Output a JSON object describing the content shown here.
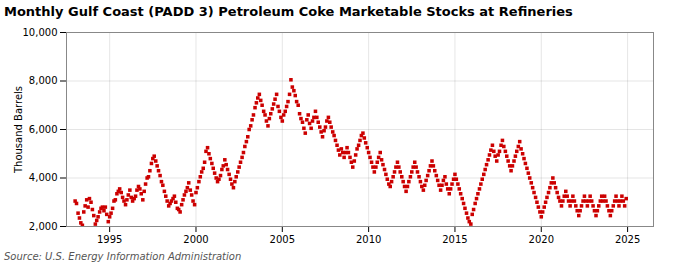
{
  "chart_data": {
    "type": "scatter",
    "title": "Monthly Gulf Coast (PADD 3) Petroleum Coke Marketable Stocks at Refineries",
    "ylabel": "Thousand Barrels",
    "caption": "Source: U.S. Energy Information Administration",
    "color": "#cc0000",
    "marker": "square",
    "grid": true,
    "xlim": [
      1992.5,
      2026.5
    ],
    "xticks": [
      1995,
      2000,
      2005,
      2010,
      2015,
      2020,
      2025
    ],
    "ylim": [
      2000,
      10000
    ],
    "yticks": [
      {
        "value": 2000,
        "label": "2,000"
      },
      {
        "value": 4000,
        "label": "4,000"
      },
      {
        "value": 6000,
        "label": "6,000"
      },
      {
        "value": 8000,
        "label": "8,000"
      },
      {
        "value": 10000,
        "label": "10,000"
      }
    ],
    "x": [
      1993.0,
      1993.08,
      1993.17,
      1993.25,
      1993.33,
      1993.42,
      1993.5,
      1993.58,
      1993.67,
      1993.75,
      1993.83,
      1993.92,
      1994.0,
      1994.08,
      1994.17,
      1994.25,
      1994.33,
      1994.42,
      1994.5,
      1994.58,
      1994.67,
      1994.75,
      1994.83,
      1994.92,
      1995.0,
      1995.08,
      1995.17,
      1995.25,
      1995.33,
      1995.42,
      1995.5,
      1995.58,
      1995.67,
      1995.75,
      1995.83,
      1995.92,
      1996.0,
      1996.08,
      1996.17,
      1996.25,
      1996.33,
      1996.42,
      1996.5,
      1996.58,
      1996.67,
      1996.75,
      1996.83,
      1996.92,
      1997.0,
      1997.08,
      1997.17,
      1997.25,
      1997.33,
      1997.42,
      1997.5,
      1997.58,
      1997.67,
      1997.75,
      1997.83,
      1997.92,
      1998.0,
      1998.08,
      1998.17,
      1998.25,
      1998.33,
      1998.42,
      1998.5,
      1998.58,
      1998.67,
      1998.75,
      1998.83,
      1998.92,
      1999.0,
      1999.08,
      1999.17,
      1999.25,
      1999.33,
      1999.42,
      1999.5,
      1999.58,
      1999.67,
      1999.75,
      1999.83,
      1999.92,
      2000.0,
      2000.08,
      2000.17,
      2000.25,
      2000.33,
      2000.42,
      2000.5,
      2000.58,
      2000.67,
      2000.75,
      2000.83,
      2000.92,
      2001.0,
      2001.08,
      2001.17,
      2001.25,
      2001.33,
      2001.42,
      2001.5,
      2001.58,
      2001.67,
      2001.75,
      2001.83,
      2001.92,
      2002.0,
      2002.08,
      2002.17,
      2002.25,
      2002.33,
      2002.42,
      2002.5,
      2002.58,
      2002.67,
      2002.75,
      2002.83,
      2002.92,
      2003.0,
      2003.08,
      2003.17,
      2003.25,
      2003.33,
      2003.42,
      2003.5,
      2003.58,
      2003.67,
      2003.75,
      2003.83,
      2003.92,
      2004.0,
      2004.08,
      2004.17,
      2004.25,
      2004.33,
      2004.42,
      2004.5,
      2004.58,
      2004.67,
      2004.75,
      2004.83,
      2004.92,
      2005.0,
      2005.08,
      2005.17,
      2005.25,
      2005.33,
      2005.42,
      2005.5,
      2005.58,
      2005.67,
      2005.75,
      2005.83,
      2005.92,
      2006.0,
      2006.08,
      2006.17,
      2006.25,
      2006.33,
      2006.42,
      2006.5,
      2006.58,
      2006.67,
      2006.75,
      2006.83,
      2006.92,
      2007.0,
      2007.08,
      2007.17,
      2007.25,
      2007.33,
      2007.42,
      2007.5,
      2007.58,
      2007.67,
      2007.75,
      2007.83,
      2007.92,
      2008.0,
      2008.08,
      2008.17,
      2008.25,
      2008.33,
      2008.42,
      2008.5,
      2008.58,
      2008.67,
      2008.75,
      2008.83,
      2008.92,
      2009.0,
      2009.08,
      2009.17,
      2009.25,
      2009.33,
      2009.42,
      2009.5,
      2009.58,
      2009.67,
      2009.75,
      2009.83,
      2009.92,
      2010.0,
      2010.08,
      2010.17,
      2010.25,
      2010.33,
      2010.42,
      2010.5,
      2010.58,
      2010.67,
      2010.75,
      2010.83,
      2010.92,
      2011.0,
      2011.08,
      2011.17,
      2011.25,
      2011.33,
      2011.42,
      2011.5,
      2011.58,
      2011.67,
      2011.75,
      2011.83,
      2011.92,
      2012.0,
      2012.08,
      2012.17,
      2012.25,
      2012.33,
      2012.42,
      2012.5,
      2012.58,
      2012.67,
      2012.75,
      2012.83,
      2012.92,
      2013.0,
      2013.08,
      2013.17,
      2013.25,
      2013.33,
      2013.42,
      2013.5,
      2013.58,
      2013.67,
      2013.75,
      2013.83,
      2013.92,
      2014.0,
      2014.08,
      2014.17,
      2014.25,
      2014.33,
      2014.42,
      2014.5,
      2014.58,
      2014.67,
      2014.75,
      2014.83,
      2014.92,
      2015.0,
      2015.08,
      2015.17,
      2015.25,
      2015.33,
      2015.42,
      2015.5,
      2015.58,
      2015.67,
      2015.75,
      2015.83,
      2015.92,
      2016.0,
      2016.08,
      2016.17,
      2016.25,
      2016.33,
      2016.42,
      2016.5,
      2016.58,
      2016.67,
      2016.75,
      2016.83,
      2016.92,
      2017.0,
      2017.08,
      2017.17,
      2017.25,
      2017.33,
      2017.42,
      2017.5,
      2017.58,
      2017.67,
      2017.75,
      2017.83,
      2017.92,
      2018.0,
      2018.08,
      2018.17,
      2018.25,
      2018.33,
      2018.42,
      2018.5,
      2018.58,
      2018.67,
      2018.75,
      2018.83,
      2018.92,
      2019.0,
      2019.08,
      2019.17,
      2019.25,
      2019.33,
      2019.42,
      2019.5,
      2019.58,
      2019.67,
      2019.75,
      2019.83,
      2019.92,
      2020.0,
      2020.08,
      2020.17,
      2020.25,
      2020.33,
      2020.42,
      2020.5,
      2020.58,
      2020.67,
      2020.75,
      2020.83,
      2020.92,
      2021.0,
      2021.08,
      2021.17,
      2021.25,
      2021.33,
      2021.42,
      2021.5,
      2021.58,
      2021.67,
      2021.75,
      2021.83,
      2021.92,
      2022.0,
      2022.08,
      2022.17,
      2022.25,
      2022.33,
      2022.42,
      2022.5,
      2022.58,
      2022.67,
      2022.75,
      2022.83,
      2022.92,
      2023.0,
      2023.08,
      2023.17,
      2023.25,
      2023.33,
      2023.42,
      2023.5,
      2023.58,
      2023.67,
      2023.75,
      2023.83,
      2023.92,
      2024.0,
      2024.08,
      2024.17,
      2024.25,
      2024.33,
      2024.42,
      2024.5,
      2024.58,
      2024.67,
      2024.75,
      2024.83,
      2024.92
    ],
    "values": [
      3050,
      2950,
      2550,
      2350,
      2150,
      2050,
      2600,
      2850,
      3100,
      2800,
      3150,
      3000,
      2700,
      2450,
      2100,
      2250,
      2400,
      2600,
      2750,
      2800,
      2650,
      2800,
      2500,
      2200,
      2400,
      2550,
      2750,
      3050,
      3100,
      3350,
      3450,
      3550,
      3400,
      3200,
      3050,
      2900,
      3100,
      3300,
      3500,
      3200,
      3050,
      3150,
      3250,
      3500,
      3650,
      3550,
      3350,
      3100,
      3450,
      3750,
      4000,
      4050,
      4300,
      4600,
      4800,
      4900,
      4700,
      4500,
      4300,
      4100,
      3850,
      3700,
      3450,
      3250,
      3050,
      2850,
      2950,
      3050,
      3150,
      3250,
      3000,
      2750,
      2700,
      2600,
      2900,
      3100,
      3300,
      3450,
      3600,
      3800,
      3500,
      3300,
      3050,
      2900,
      3400,
      3600,
      3850,
      4050,
      4250,
      4400,
      4650,
      5100,
      5250,
      5000,
      4800,
      4600,
      4400,
      4200,
      4000,
      3850,
      3950,
      4100,
      4350,
      4500,
      4750,
      4550,
      4350,
      4150,
      3950,
      3750,
      3600,
      3850,
      4050,
      4250,
      4450,
      4650,
      4850,
      5050,
      5300,
      5500,
      5700,
      6000,
      6150,
      6400,
      6600,
      6900,
      7100,
      7300,
      7450,
      7200,
      7000,
      6750,
      6600,
      6350,
      6150,
      6450,
      6650,
      6850,
      7050,
      7250,
      7450,
      6950,
      6750,
      6500,
      6350,
      6600,
      6750,
      6950,
      7150,
      7450,
      8050,
      7750,
      7600,
      7400,
      7150,
      7000,
      6650,
      6450,
      6300,
      6050,
      5850,
      6400,
      6600,
      6250,
      6050,
      6350,
      6500,
      6750,
      6500,
      6300,
      6100,
      5900,
      5700,
      5950,
      6100,
      6350,
      6500,
      6300,
      6100,
      5900,
      5750,
      5550,
      5350,
      5150,
      4950,
      5200,
      5050,
      4850,
      5050,
      5250,
      5050,
      4850,
      4650,
      4450,
      4700,
      4950,
      5200,
      5350,
      5550,
      5750,
      5850,
      5650,
      5450,
      5250,
      5050,
      4850,
      4650,
      4450,
      4250,
      4450,
      4650,
      4850,
      5050,
      4750,
      4550,
      4350,
      4150,
      3950,
      3750,
      3650,
      3850,
      4050,
      4250,
      4450,
      4650,
      4450,
      4250,
      4050,
      3850,
      3650,
      3450,
      3650,
      3850,
      4050,
      4250,
      4450,
      4650,
      4450,
      4250,
      4050,
      3850,
      3650,
      3500,
      3700,
      3900,
      4100,
      4300,
      4500,
      4700,
      4500,
      4300,
      4100,
      3900,
      3700,
      3500,
      3700,
      3900,
      4050,
      3750,
      3550,
      3350,
      3550,
      3750,
      3950,
      4150,
      3950,
      3750,
      3550,
      3350,
      3150,
      2950,
      2750,
      2550,
      2350,
      2200,
      2100,
      2500,
      2700,
      2950,
      3150,
      3350,
      3550,
      3750,
      3950,
      4150,
      4350,
      4550,
      4750,
      4950,
      5150,
      5350,
      5100,
      4900,
      4700,
      4950,
      5100,
      5350,
      5550,
      5300,
      5100,
      4900,
      4700,
      4500,
      4300,
      4500,
      4700,
      4900,
      5100,
      5300,
      5500,
      5200,
      5000,
      4800,
      4600,
      4400,
      4200,
      4000,
      3800,
      3600,
      3400,
      3200,
      3000,
      2800,
      2600,
      2400,
      2600,
      2800,
      3000,
      3200,
      3400,
      3600,
      3800,
      4000,
      3800,
      3600,
      3400,
      3200,
      3050,
      2850,
      3050,
      3250,
      3450,
      3250,
      3050,
      2850,
      3050,
      3250,
      3050,
      2850,
      2650,
      2450,
      2650,
      2850,
      3050,
      3250,
      3050,
      2850,
      3050,
      3250,
      3050,
      2850,
      2650,
      2450,
      2650,
      2850,
      3050,
      3250,
      3050,
      3250,
      3050,
      2850,
      2650,
      2450,
      2650,
      2850,
      3050,
      3250,
      3050,
      2850,
      3050,
      3250,
      3050,
      2850,
      3150
    ]
  }
}
